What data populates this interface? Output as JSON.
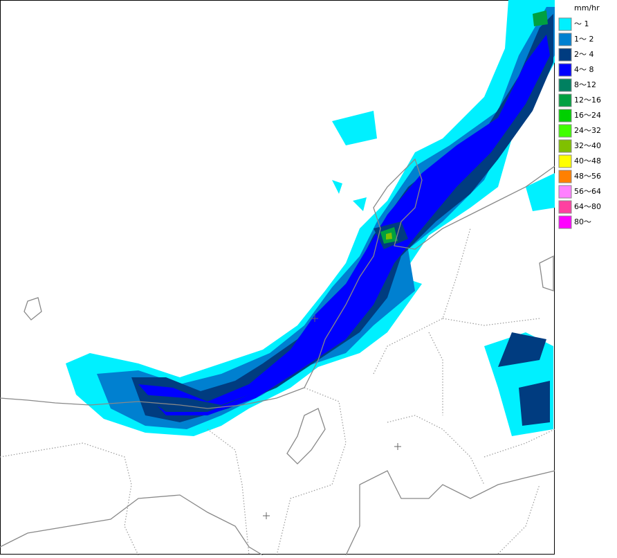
{
  "legend": {
    "unit": "mm/hr",
    "items": [
      {
        "label": "～ 1",
        "color": "#00f0ff"
      },
      {
        "label": "1～ 2",
        "color": "#0080d0"
      },
      {
        "label": "2～ 4",
        "color": "#003c80"
      },
      {
        "label": "4～ 8",
        "color": "#0000ff"
      },
      {
        "label": "8～12",
        "color": "#008060"
      },
      {
        "label": "12～16",
        "color": "#00a040"
      },
      {
        "label": "16～24",
        "color": "#00d000"
      },
      {
        "label": "24～32",
        "color": "#40ff00"
      },
      {
        "label": "32～40",
        "color": "#80c000"
      },
      {
        "label": "40～48",
        "color": "#ffff00"
      },
      {
        "label": "48～56",
        "color": "#ff8000"
      },
      {
        "label": "56～64",
        "color": "#ff80ff"
      },
      {
        "label": "64～80",
        "color": "#ff40a0"
      },
      {
        "label": "80～",
        "color": "#ff00ff"
      }
    ]
  }
}
